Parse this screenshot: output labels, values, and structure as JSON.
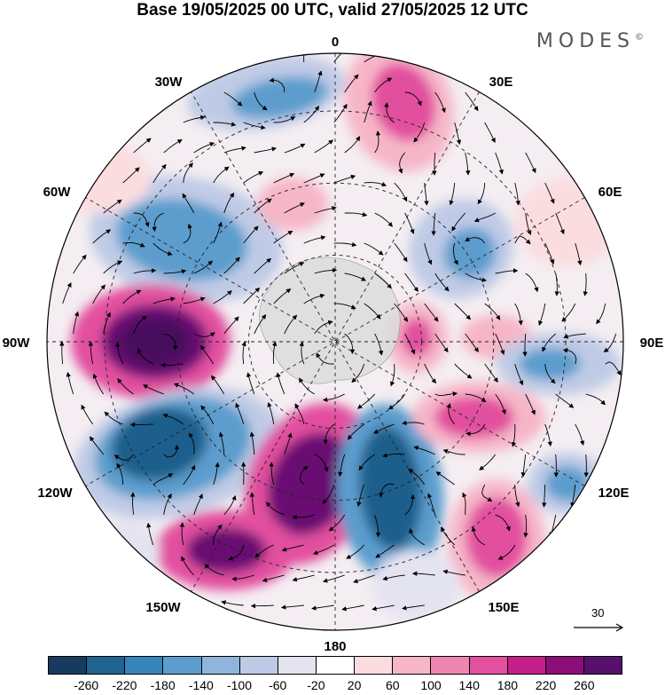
{
  "title": "Base 19/05/2025 00 UTC, valid 27/05/2025 12 UTC",
  "brand": "MODES",
  "brand_mark": "©",
  "longitude_labels": {
    "top": "0",
    "e30": "30E",
    "e60": "60E",
    "e90": "90E",
    "e120": "120E",
    "e150": "150E",
    "bottom": "180",
    "w150": "150W",
    "w120": "120W",
    "w90": "90W",
    "w60": "60W",
    "w30": "30W"
  },
  "reference_vector": "30",
  "colorbar": {
    "colors": [
      "#163b5e",
      "#1f6391",
      "#3584bc",
      "#5c9dcd",
      "#8fb5dc",
      "#bfcbe6",
      "#e4e4f0",
      "#ffffff",
      "#fbdde0",
      "#f6b6c8",
      "#ef86b2",
      "#e2509f",
      "#c41f8a",
      "#8c0f79",
      "#57106c"
    ],
    "tick_labels": [
      "-260",
      "-220",
      "-180",
      "-140",
      "-100",
      "-60",
      "-20",
      "20",
      "60",
      "100",
      "140",
      "180",
      "220",
      "260"
    ]
  },
  "palette": {
    "strong_neg": "#1f5f8c",
    "neg": "#5c9dcd",
    "weak_neg": "#bfcbe6",
    "faint_neg": "#e4e4f0",
    "faint_pos": "#fbdde0",
    "weak_pos": "#f6b6c8",
    "pos": "#e2509f",
    "strong_pos": "#6a0f72",
    "land": "#dcdcdc"
  }
}
